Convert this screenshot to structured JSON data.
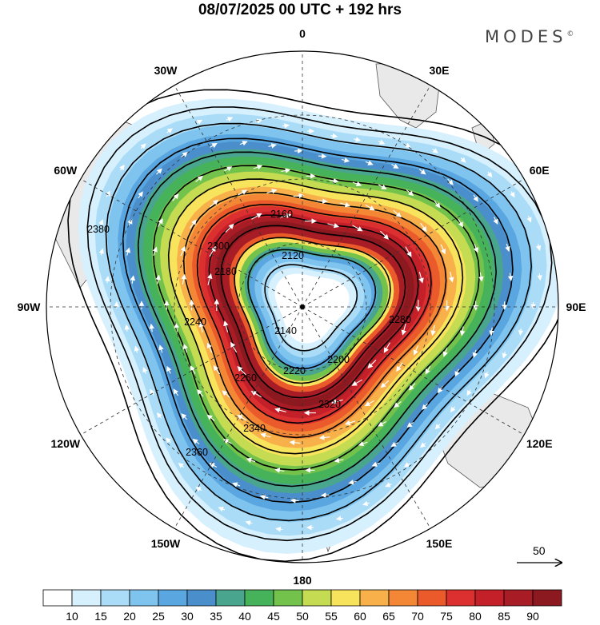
{
  "title": "08/07/2025  00 UTC  + 192 hrs",
  "brand": {
    "name": "MODES",
    "mark": "©"
  },
  "longitude_labels": [
    {
      "deg": 0,
      "label": "0"
    },
    {
      "deg": 30,
      "label": "30E"
    },
    {
      "deg": 60,
      "label": "60E"
    },
    {
      "deg": 90,
      "label": "90E"
    },
    {
      "deg": 120,
      "label": "120E"
    },
    {
      "deg": 150,
      "label": "150E"
    },
    {
      "deg": 180,
      "label": "180"
    },
    {
      "deg": -150,
      "label": "150W"
    },
    {
      "deg": -120,
      "label": "120W"
    },
    {
      "deg": -90,
      "label": "90W"
    },
    {
      "deg": -60,
      "label": "60W"
    },
    {
      "deg": -30,
      "label": "30W"
    }
  ],
  "contour_labels": [
    "2120",
    "2140",
    "2160",
    "2180",
    "2200",
    "2220",
    "2240",
    "2260",
    "2280",
    "2300",
    "2320",
    "2340",
    "2360",
    "2380"
  ],
  "reference_vector": {
    "label": "50"
  },
  "colorbar": {
    "colors": [
      "#ffffff",
      "#d6f0fd",
      "#aadcf7",
      "#7fc4ee",
      "#5aa6e0",
      "#4a8fcc",
      "#4aa58e",
      "#46b25a",
      "#73c24c",
      "#c5dc52",
      "#f8e45c",
      "#f7b04a",
      "#f48735",
      "#ea5a2a",
      "#dc3030",
      "#c4202a",
      "#a81c26",
      "#8c1820"
    ],
    "labels": [
      "10",
      "15",
      "20",
      "25",
      "30",
      "35",
      "40",
      "45",
      "50",
      "55",
      "60",
      "65",
      "70",
      "75",
      "80",
      "85",
      "90"
    ]
  },
  "colors": {
    "land": "#e9e9e9",
    "coast": "#555555",
    "contour": "#000000",
    "arrow": "#ffffff"
  }
}
